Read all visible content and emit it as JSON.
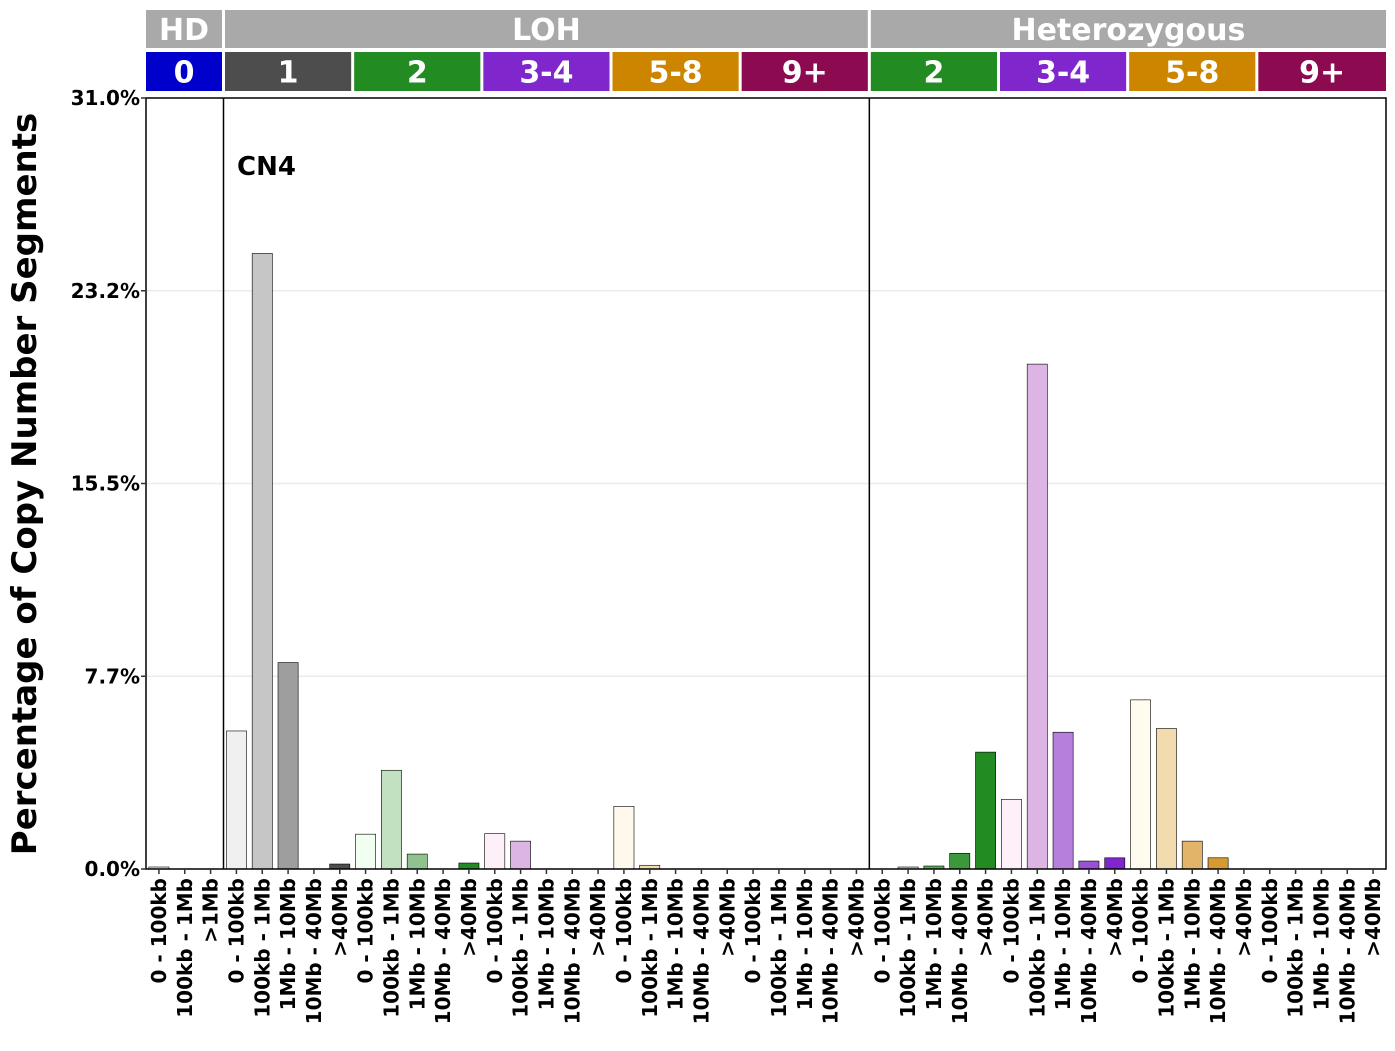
{
  "chart_data": {
    "type": "bar",
    "ylabel": "Percentage of Copy Number Segments",
    "ylim": [
      0,
      31.0
    ],
    "yticks": [
      "0.0%",
      "7.7%",
      "15.5%",
      "23.2%",
      "31.0%"
    ],
    "ytick_values": [
      0,
      7.75,
      15.5,
      23.25,
      31.0
    ],
    "grid": "horizontal",
    "annotation": "CN4",
    "top_strips": [
      {
        "label": "HD",
        "color": "#a9a9a9",
        "from": 0,
        "to": 3
      },
      {
        "label": "LOH",
        "color": "#a9a9a9",
        "from": 3,
        "to": 28
      },
      {
        "label": "Heterozygous",
        "color": "#a9a9a9",
        "from": 28,
        "to": 48
      }
    ],
    "sub_strips": [
      {
        "label": "0",
        "color": "#0000cd",
        "from": 0,
        "to": 3
      },
      {
        "label": "1",
        "color": "#4d4d4d",
        "from": 3,
        "to": 8
      },
      {
        "label": "2",
        "color": "#228b22",
        "from": 8,
        "to": 13
      },
      {
        "label": "3-4",
        "color": "#7f27cc",
        "from": 13,
        "to": 18
      },
      {
        "label": "5-8",
        "color": "#cd8500",
        "from": 18,
        "to": 23
      },
      {
        "label": "9+",
        "color": "#8b0a50",
        "from": 23,
        "to": 28
      },
      {
        "label": "2",
        "color": "#228b22",
        "from": 28,
        "to": 33
      },
      {
        "label": "3-4",
        "color": "#7f27cc",
        "from": 33,
        "to": 38
      },
      {
        "label": "5-8",
        "color": "#cd8500",
        "from": 38,
        "to": 43
      },
      {
        "label": "9+",
        "color": "#8b0a50",
        "from": 43,
        "to": 48
      }
    ],
    "section_dividers": [
      3,
      28
    ],
    "categories": [
      "0 - 100kb",
      "100kb - 1Mb",
      ">1Mb",
      "0 - 100kb",
      "100kb - 1Mb",
      "1Mb - 10Mb",
      "10Mb - 40Mb",
      ">40Mb",
      "0 - 100kb",
      "100kb - 1Mb",
      "1Mb - 10Mb",
      "10Mb - 40Mb",
      ">40Mb",
      "0 - 100kb",
      "100kb - 1Mb",
      "1Mb - 10Mb",
      "10Mb - 40Mb",
      ">40Mb",
      "0 - 100kb",
      "100kb - 1Mb",
      "1Mb - 10Mb",
      "10Mb - 40Mb",
      ">40Mb",
      "0 - 100kb",
      "100kb - 1Mb",
      "1Mb - 10Mb",
      "10Mb - 40Mb",
      ">40Mb",
      "0 - 100kb",
      "100kb - 1Mb",
      "1Mb - 10Mb",
      "10Mb - 40Mb",
      ">40Mb",
      "0 - 100kb",
      "100kb - 1Mb",
      "1Mb - 10Mb",
      "10Mb - 40Mb",
      ">40Mb",
      "0 - 100kb",
      "100kb - 1Mb",
      "1Mb - 10Mb",
      "10Mb - 40Mb",
      ">40Mb",
      "0 - 100kb",
      "100kb - 1Mb",
      "1Mb - 10Mb",
      "10Mb - 40Mb",
      ">40Mb"
    ],
    "values": [
      0.08,
      0,
      0,
      5.55,
      24.75,
      8.3,
      0,
      0.2,
      1.4,
      3.97,
      0.6,
      0,
      0.24,
      1.42,
      1.12,
      0,
      0,
      0,
      2.52,
      0.15,
      0,
      0,
      0,
      0,
      0,
      0,
      0,
      0,
      0,
      0.08,
      0.12,
      0.63,
      4.7,
      2.8,
      20.3,
      5.5,
      0.32,
      0.45,
      6.8,
      5.65,
      1.12,
      0.45,
      0,
      0,
      0,
      0,
      0,
      0
    ],
    "bar_colors": [
      "#f0f0f0",
      "#bdbdbd",
      "#636363",
      "#f0f0f0",
      "#c6c6c6",
      "#9e9e9e",
      "#777777",
      "#4d4d4d",
      "#f0fff0",
      "#c1e1c1",
      "#8fc28f",
      "#58a658",
      "#228b22",
      "#fdf0f8",
      "#dcb5e5",
      "#b57fdb",
      "#9a51d6",
      "#7f27cc",
      "#fff9ed",
      "#f2dcaf",
      "#e1b46a",
      "#d59a33",
      "#cd8500",
      "#f7e6ef",
      "#e1a8c6",
      "#c5679b",
      "#a93975",
      "#8b0a50",
      "#f0fff0",
      "#c1e1c1",
      "#5aaa5a",
      "#3b983b",
      "#228b22",
      "#fdf0f8",
      "#dcb5e5",
      "#b57fdb",
      "#9a51d6",
      "#7f27cc",
      "#fffbef",
      "#f2dcaf",
      "#e1b46a",
      "#d59a33",
      "#cd8500",
      "#f7e6ef",
      "#e1a8c6",
      "#c5679b",
      "#a93975",
      "#8b0a50"
    ]
  }
}
